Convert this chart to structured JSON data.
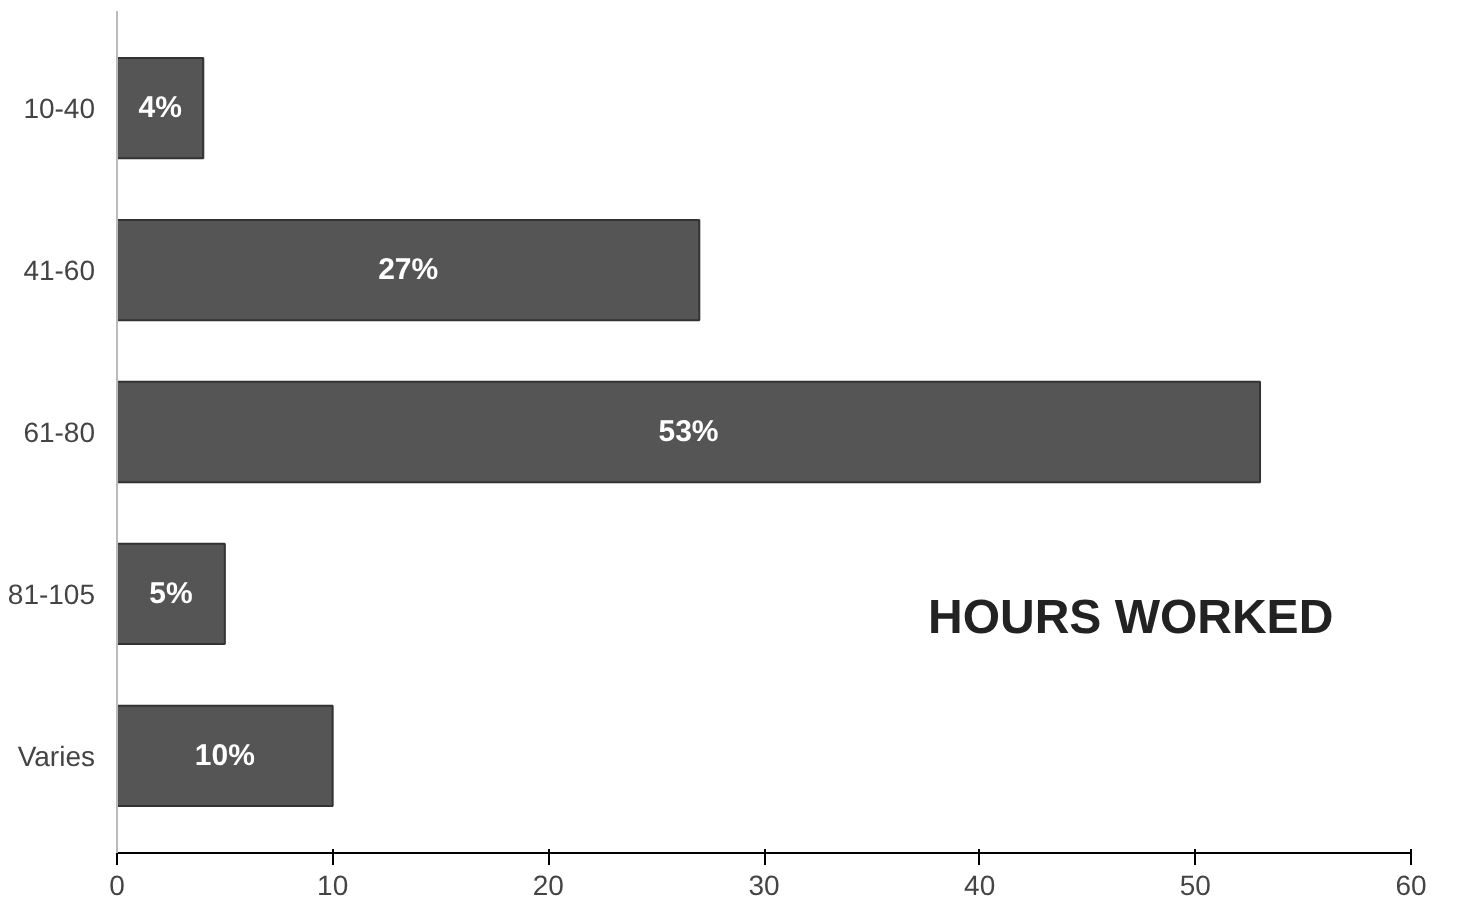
{
  "chart_data": {
    "type": "bar",
    "orientation": "horizontal",
    "title": "HOURS WORKED",
    "categories": [
      "10-40",
      "41-60",
      "61-80",
      "81-105",
      "Varies"
    ],
    "values": [
      4,
      27,
      53,
      5,
      10
    ],
    "value_labels": [
      "4%",
      "27%",
      "53%",
      "5%",
      "10%"
    ],
    "color": "#555555",
    "xlim": [
      0,
      60
    ],
    "xticks": [
      0,
      10,
      20,
      30,
      40,
      50,
      60
    ],
    "grid": false
  }
}
